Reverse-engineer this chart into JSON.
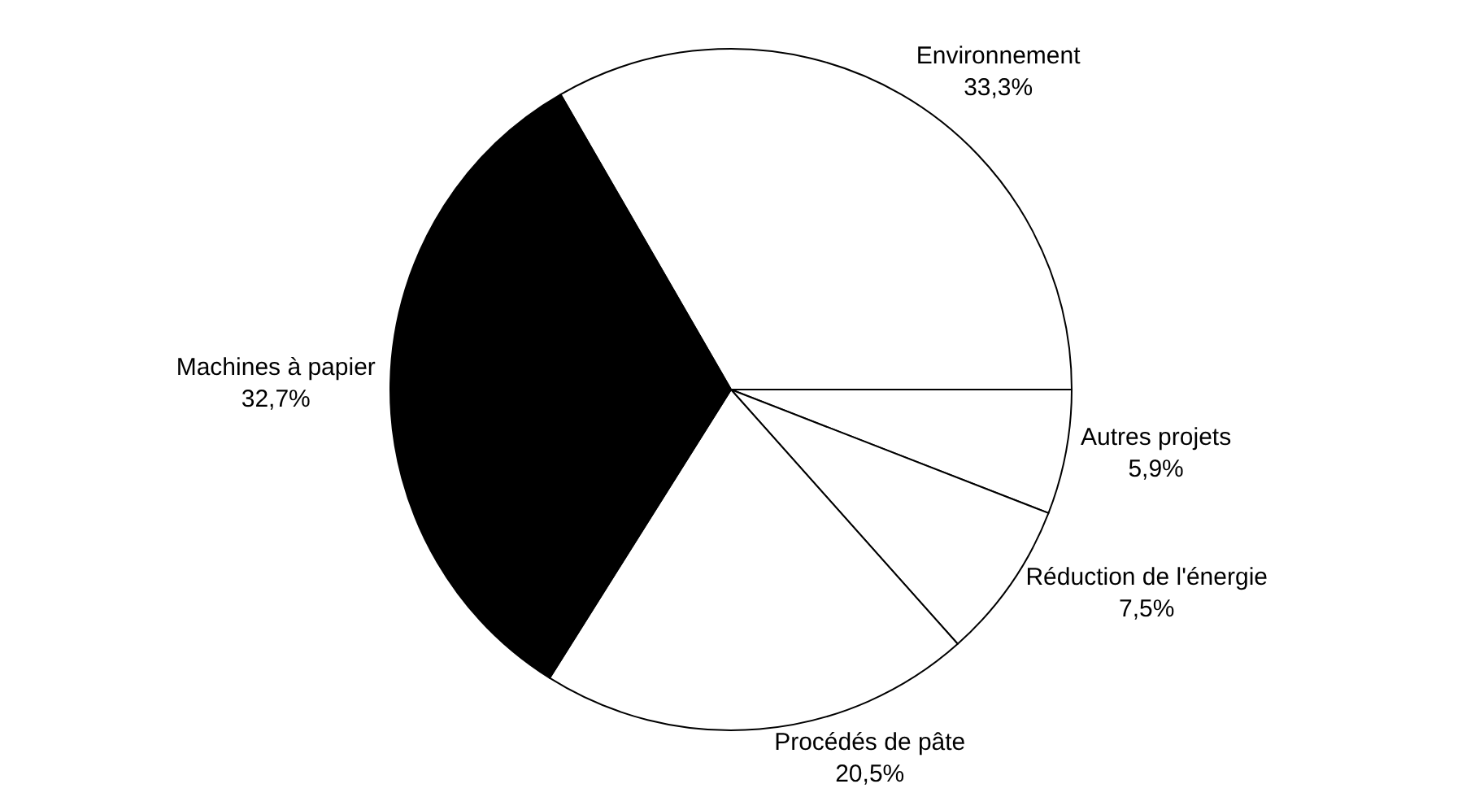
{
  "chart_data": {
    "type": "pie",
    "categories": [
      "Environnement",
      "Autres projets",
      "Réduction de l'énergie",
      "Procédés de pâte",
      "Machines à papier"
    ],
    "values": [
      33.3,
      5.9,
      7.5,
      20.5,
      32.7
    ],
    "value_labels": [
      "33,3%",
      "5,9%",
      "7,5%",
      "20,5%",
      "32,7%"
    ],
    "colors": [
      "#ffffff",
      "#ffffff",
      "#ffffff",
      "#ffffff",
      "#000000"
    ],
    "legend": false
  }
}
